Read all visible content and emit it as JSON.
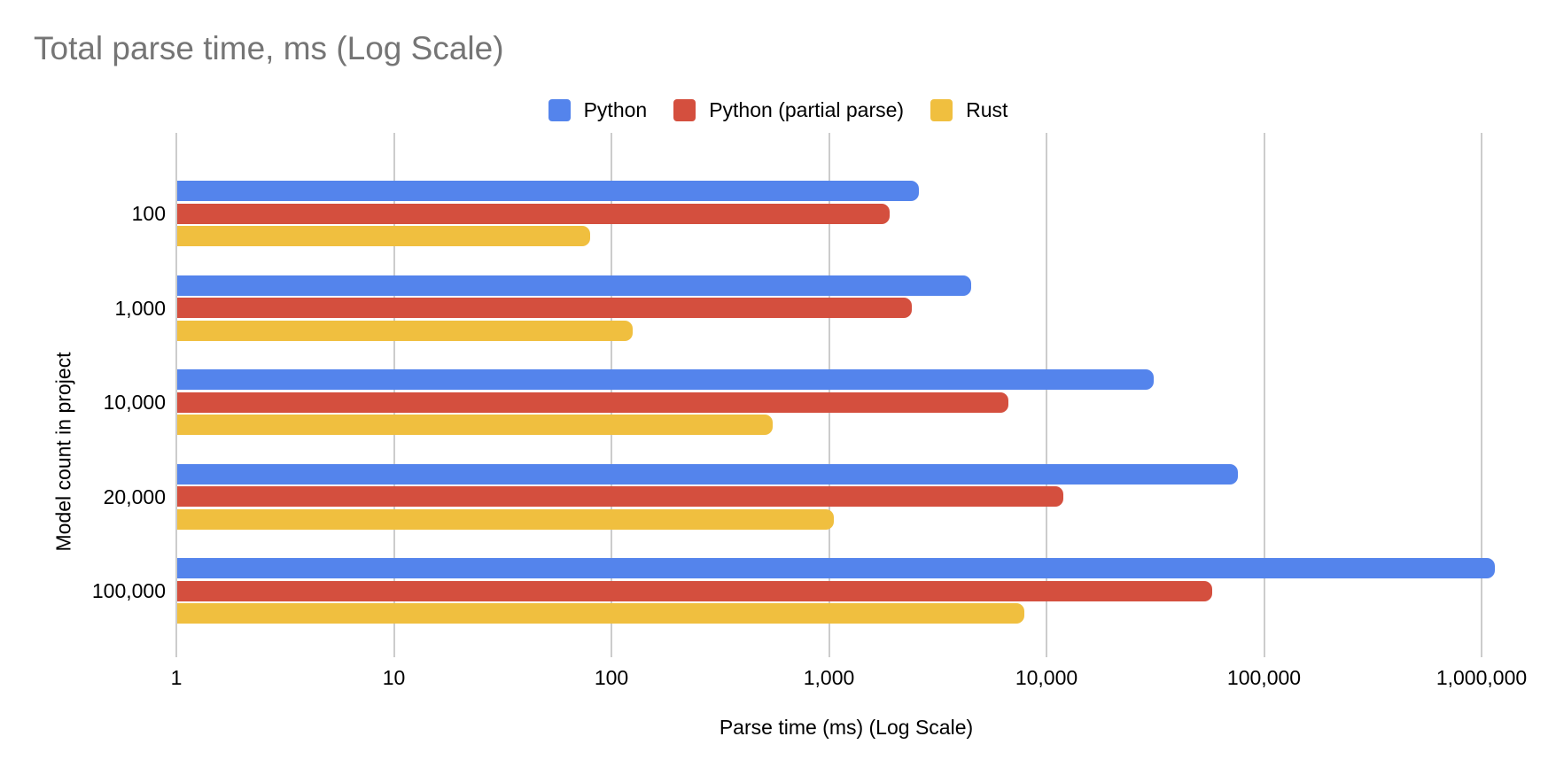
{
  "colors": {
    "background": "#ffffff",
    "title_text": "#757575",
    "axis_text": "#000000",
    "gridline": "#cccccc"
  },
  "chart_data": {
    "type": "bar",
    "orientation": "horizontal",
    "x_scale": "log",
    "grid": true,
    "legend_position": "top",
    "title": "Total parse time, ms (Log Scale)",
    "xlabel": "Parse time (ms) (Log Scale)",
    "ylabel": "Model count in project",
    "categories": [
      "100",
      "1,000",
      "10,000",
      "20,000",
      "100,000"
    ],
    "x_ticks": [
      "1",
      "10",
      "100",
      "1,000",
      "10,000",
      "100,000",
      "1,000,000"
    ],
    "xlim": [
      1,
      1000000
    ],
    "series": [
      {
        "name": "Python",
        "color": "#5484EC",
        "values": [
          2600,
          4500,
          31000,
          76000,
          1150000
        ]
      },
      {
        "name": "Python (partial parse)",
        "color": "#D44F3E",
        "values": [
          1900,
          2400,
          6700,
          12000,
          58000
        ]
      },
      {
        "name": "Rust",
        "color": "#F0BF3F",
        "values": [
          80,
          125,
          550,
          1050,
          7900
        ]
      }
    ]
  }
}
